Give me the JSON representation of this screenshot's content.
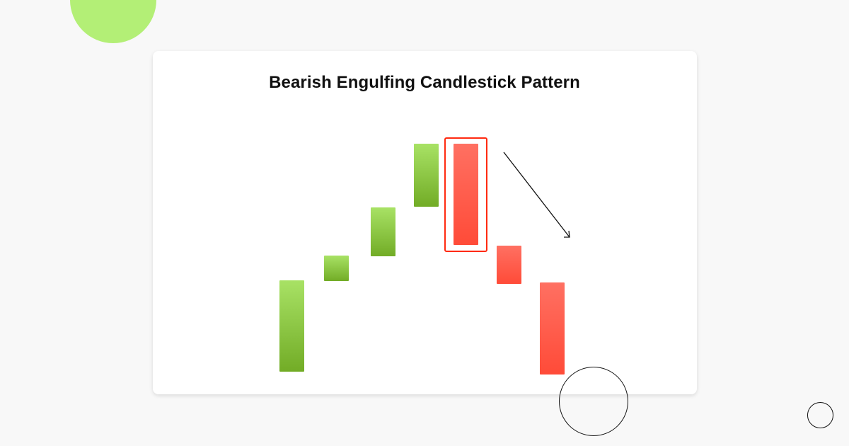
{
  "title": "Bearish Engulfing Candlestick Pattern",
  "colors": {
    "background": "#f8f8f8",
    "accent_circle": "#b3ef76",
    "bullish_top": "#a8e265",
    "bullish_bottom": "#72ac26",
    "bearish_top": "#ff7062",
    "bearish_bottom": "#ff4b38",
    "highlight": "#ff2a10",
    "arrow": "#111111"
  },
  "chart_data": {
    "type": "candlestick",
    "title": "Bearish Engulfing Candlestick Pattern",
    "xlabel": "",
    "ylabel": "",
    "axes_visible": false,
    "grid": false,
    "candles": [
      {
        "direction": "bullish",
        "open": 15,
        "close": 144
      },
      {
        "direction": "bullish",
        "open": 143,
        "close": 179
      },
      {
        "direction": "bullish",
        "open": 178,
        "close": 247
      },
      {
        "direction": "bullish",
        "open": 248,
        "close": 337
      },
      {
        "direction": "bearish",
        "open": 337,
        "close": 194,
        "highlighted": true
      },
      {
        "direction": "bearish",
        "open": 193,
        "close": 139
      },
      {
        "direction": "bearish",
        "open": 141,
        "close": 11
      }
    ],
    "trend_arrow": "down"
  }
}
